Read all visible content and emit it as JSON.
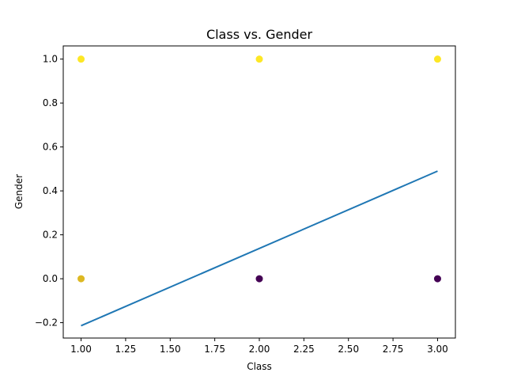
{
  "chart_data": {
    "type": "scatter",
    "title": "Class vs. Gender",
    "xlabel": "Class",
    "ylabel": "Gender",
    "xlim": [
      0.9,
      3.1
    ],
    "ylim": [
      -0.27,
      1.06
    ],
    "x_ticks": [
      "1.00",
      "1.25",
      "1.50",
      "1.75",
      "2.00",
      "2.25",
      "2.50",
      "2.75",
      "3.00"
    ],
    "y_ticks": [
      "−0.2",
      "0.0",
      "0.2",
      "0.4",
      "0.6",
      "0.8",
      "1.0"
    ],
    "grid": false,
    "legend": "none",
    "series": [
      {
        "points": [
          {
            "x": 1.0,
            "y": 1.0,
            "color": "#fde725"
          },
          {
            "x": 2.0,
            "y": 1.0,
            "color": "#fde725"
          },
          {
            "x": 3.0,
            "y": 1.0,
            "color": "#fde725"
          },
          {
            "x": 1.0,
            "y": 0.0,
            "color": "#ddb822"
          },
          {
            "x": 2.0,
            "y": 0.0,
            "color": "#440154"
          },
          {
            "x": 3.0,
            "y": 0.0,
            "color": "#440154"
          }
        ]
      }
    ],
    "fit_line": {
      "x": [
        1.0,
        3.0
      ],
      "y": [
        -0.214,
        0.49
      ],
      "color": "#1f77b4"
    }
  }
}
